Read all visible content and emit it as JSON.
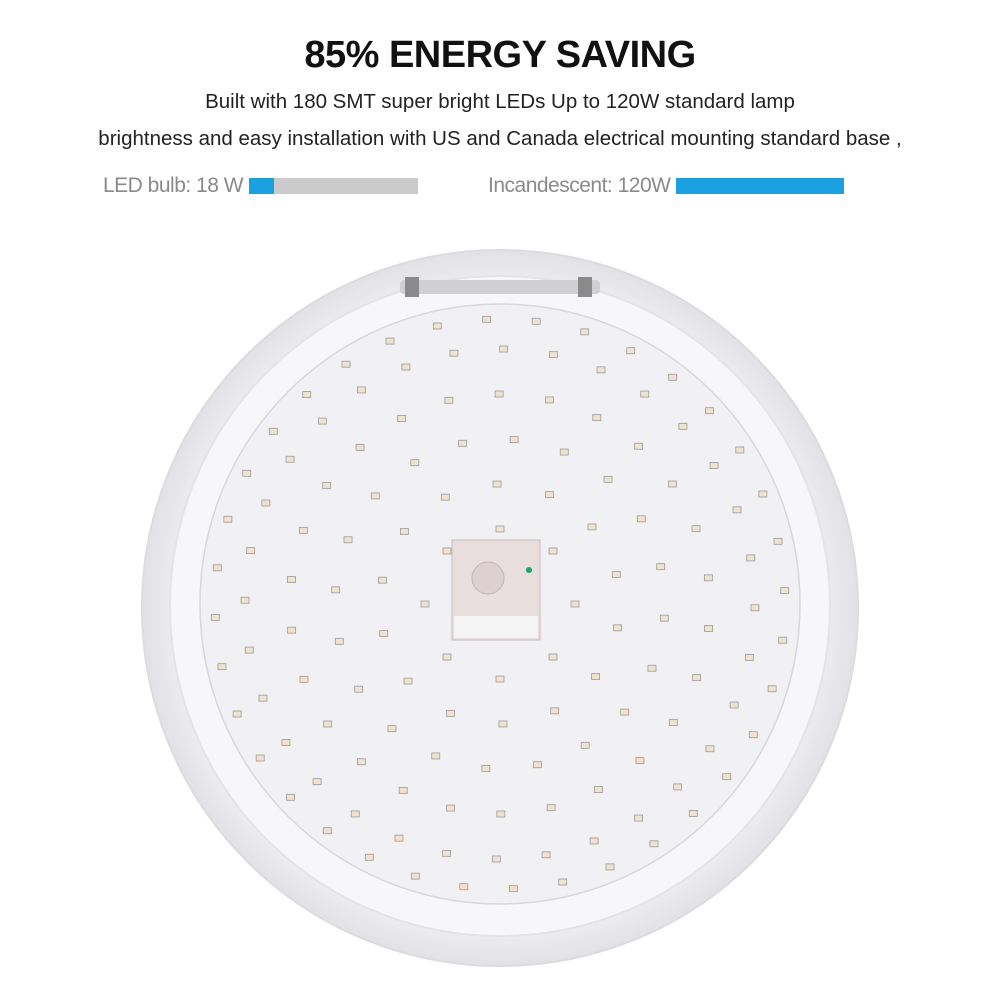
{
  "heading": "85% ENERGY SAVING",
  "description": [
    "Built with 180 SMT super bright LEDs Up to 120W standard lamp",
    "brightness and easy installation with US and Canada electrical mounting standard base ,"
  ],
  "comparison": [
    {
      "label": "LED bulb: 18 W",
      "fill_fraction": 0.15
    },
    {
      "label": "Incandescent: 120W",
      "fill_fraction": 1.0
    }
  ],
  "colors": {
    "bar_fill": "#1ba1e2",
    "bar_track": "#cbcbcb"
  }
}
